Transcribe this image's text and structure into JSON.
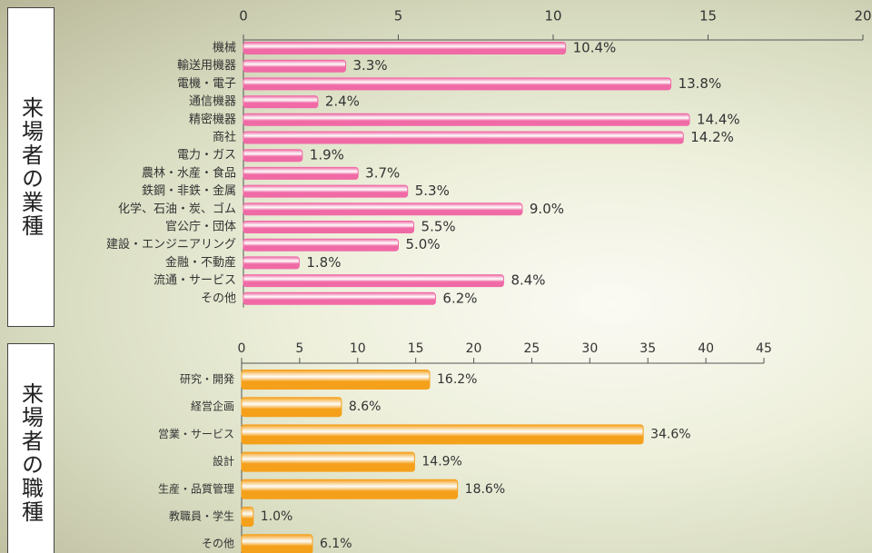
{
  "chart_data": [
    {
      "type": "bar",
      "orientation": "horizontal",
      "title": "来場者の業種",
      "categories": [
        "機械",
        "輸送用機器",
        "電機・電子",
        "通信機器",
        "精密機器",
        "商社",
        "電力・ガス",
        "農林・水産・食品",
        "鉄鋼・非鉄・金属",
        "化学、石油・炭、ゴム",
        "官公庁・団体",
        "建設・エンジニアリング",
        "金融・不動産",
        "流通・サービス",
        "その他"
      ],
      "values": [
        10.4,
        3.3,
        13.8,
        2.4,
        14.4,
        14.2,
        1.9,
        3.7,
        5.3,
        9.0,
        5.5,
        5.0,
        1.8,
        8.4,
        6.2
      ],
      "value_labels": [
        "10.4%",
        "3.3%",
        "13.8%",
        "2.4%",
        "14.4%",
        "14.2%",
        "1.9%",
        "3.7%",
        "5.3%",
        "9.0%",
        "5.5%",
        "5.0%",
        "1.8%",
        "8.4%",
        "6.2%"
      ],
      "color": "#f06aa6",
      "xlim": [
        0,
        20
      ],
      "xticks": [
        0,
        5,
        10,
        15,
        20
      ]
    },
    {
      "type": "bar",
      "orientation": "horizontal",
      "title": "来場者の職種",
      "categories": [
        "研究・開発",
        "経営企画",
        "営業・サービス",
        "設計",
        "生産・品質管理",
        "教職員・学生",
        "その他"
      ],
      "values": [
        16.2,
        8.6,
        34.6,
        14.9,
        18.6,
        1.0,
        6.1
      ],
      "value_labels": [
        "16.2%",
        "8.6%",
        "34.6%",
        "14.9%",
        "18.6%",
        "1.0%",
        "6.1%"
      ],
      "color": "#f5a01a",
      "xlim": [
        0,
        45
      ],
      "xticks": [
        0,
        5,
        10,
        15,
        20,
        25,
        30,
        35,
        40,
        45
      ]
    }
  ]
}
